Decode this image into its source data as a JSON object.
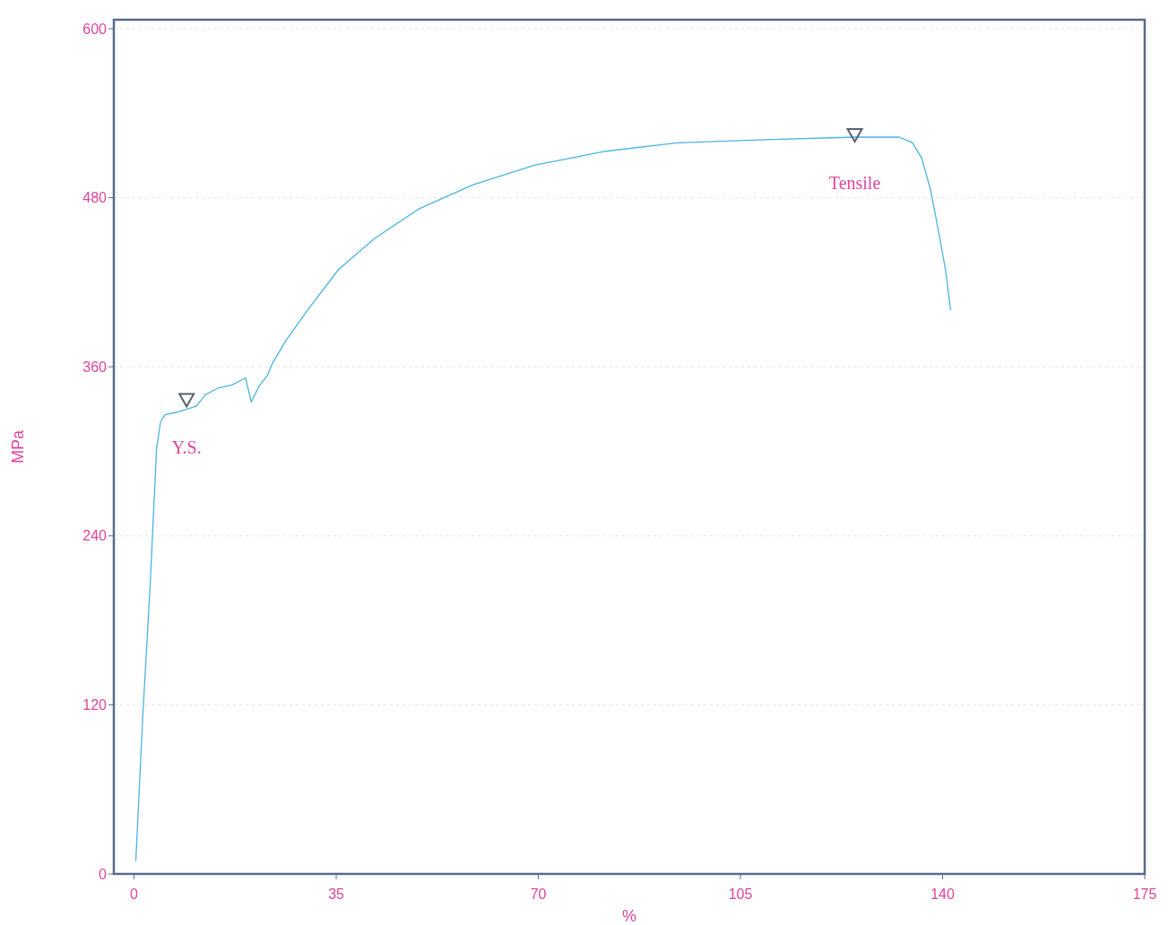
{
  "chart_data": {
    "type": "line",
    "xlabel": "%",
    "ylabel": "MPa",
    "xlim": [
      -3.5,
      175
    ],
    "xticks": [
      0,
      35,
      70,
      105,
      140,
      175
    ],
    "ylim": [
      0,
      600
    ],
    "yticks": [
      0,
      120,
      240,
      360,
      480,
      600
    ],
    "grid": "y",
    "series": [
      {
        "color": "#4ab4e0",
        "x": [
          0.3,
          1.5,
          2.8,
          3.9,
          4.6,
          5.4,
          7.7,
          9.2,
          10.8,
          12.3,
          14.6,
          16.9,
          19.3,
          20.3,
          21.6,
          23.1,
          23.9,
          26.2,
          30,
          35.4,
          41.6,
          49.3,
          58.6,
          69.3,
          81.7,
          94,
          107.9,
          124.8,
          132.5,
          134.8,
          136.4,
          137.9,
          139.4,
          140.5,
          141.4
        ],
        "values": [
          9,
          111,
          206,
          302,
          321,
          326,
          328,
          330,
          332,
          340,
          345,
          347,
          352,
          335,
          346,
          354,
          362,
          378,
          400,
          429,
          451,
          472,
          489,
          503,
          513,
          519,
          521,
          523,
          523,
          519,
          508,
          486,
          454,
          429,
          400
        ]
      },
      {
        "type": "scatter",
        "marker": "triangle",
        "color": "#55606e",
        "x": [
          9.1,
          124.8
        ],
        "values": [
          335,
          523
        ]
      }
    ],
    "annotations": [
      {
        "text": "Y.S.",
        "x": 9.1,
        "y": 335
      },
      {
        "text": "Tensile",
        "x": 124.8,
        "y": 523
      }
    ],
    "line_style": "solid",
    "marker": "none"
  }
}
